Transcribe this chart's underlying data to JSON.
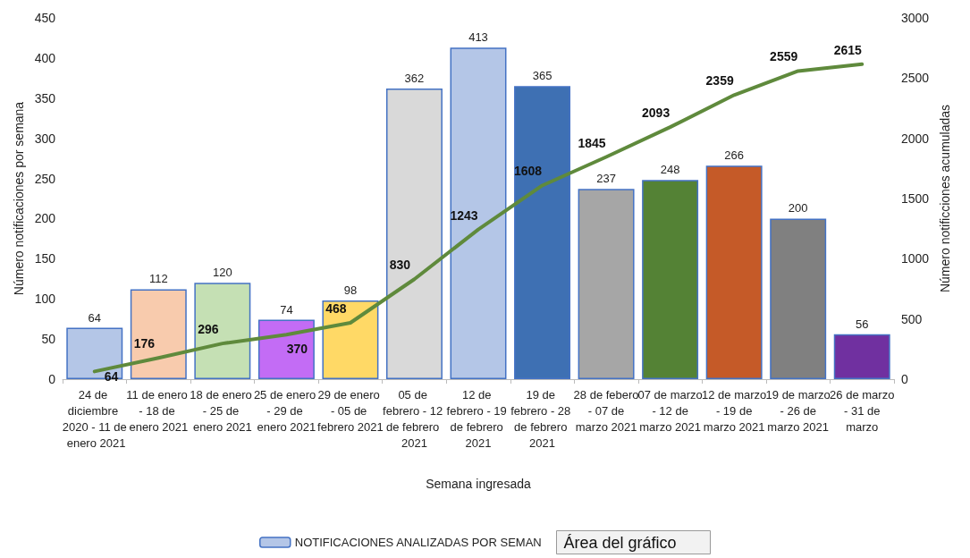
{
  "chart_data": {
    "type": "bar",
    "xlabel": "Semana ingresada",
    "ylabel": "Número notificaciones por semana",
    "y2label": "Número notificciones acumuladas",
    "categories": [
      "24 de diciembre 2020 - 11 de enero 2021",
      "11 de enero - 18 de enero 2021",
      "18 de enero - 25 de enero 2021",
      "25 de enero - 29 de enero 2021",
      "29 de enero - 05 de febrero 2021",
      "05 de febrero - 12 de febrero 2021",
      "12 de febrero - 19 de febrero 2021",
      "19 de febrero - 28 de febrero 2021",
      "28 de febero - 07 de marzo 2021",
      "07 de marzo - 12 de marzo 2021",
      "12 de marzo - 19 de marzo 2021",
      "19 de marzo - 26 de marzo 2021",
      "26 de marzo - 31 de marzo"
    ],
    "series": [
      {
        "name": "NOTIFICACIONES ANALIZADAS POR SEMAN",
        "color": "#b4c6e7",
        "colors": [
          "#b4c6e7",
          "#f8cbad",
          "#c5e0b4",
          "#c36cf5",
          "#ffd966",
          "#d9d9d9",
          "#b4c6e7",
          "#3e70b3",
          "#a6a6a6",
          "#548235",
          "#c55a28",
          "#808080",
          "#7030a0"
        ],
        "values": [
          64,
          112,
          120,
          74,
          98,
          362,
          413,
          365,
          237,
          248,
          266,
          200,
          56
        ]
      },
      {
        "type": "line",
        "axis": "y2",
        "color": "#5f8a3c",
        "values": [
          64,
          176,
          296,
          370,
          468,
          830,
          1243,
          1608,
          1845,
          2093,
          2359,
          2559,
          2615
        ]
      }
    ],
    "ylim": [
      0,
      450
    ],
    "yticks": [
      0,
      50,
      100,
      150,
      200,
      250,
      300,
      350,
      400,
      450
    ],
    "y2lim": [
      0,
      3000
    ],
    "y2ticks": [
      0,
      500,
      1000,
      1500,
      2000,
      2500,
      3000
    ],
    "data_labels": true,
    "grid": false,
    "legend": "bottom",
    "marker": "none",
    "line_style": "solid",
    "annotations": [
      "Área del gráfico"
    ]
  }
}
